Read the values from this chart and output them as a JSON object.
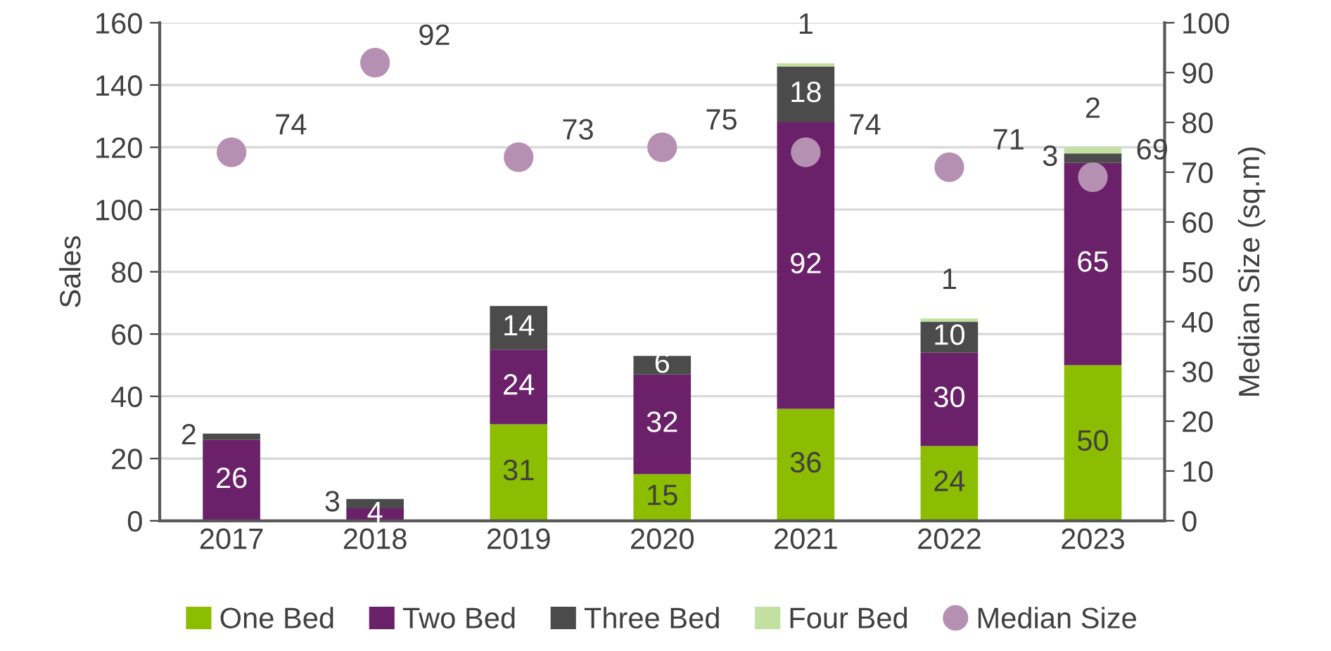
{
  "chart_data": {
    "type": "bar",
    "stacked": true,
    "categories": [
      "2017",
      "2018",
      "2019",
      "2020",
      "2021",
      "2022",
      "2023"
    ],
    "series": [
      {
        "name": "One Bed",
        "color": "#8cbd00",
        "values": [
          0,
          0,
          31,
          15,
          36,
          24,
          50
        ],
        "value_labels": [
          null,
          null,
          "31",
          "15",
          "36",
          "24",
          "50"
        ]
      },
      {
        "name": "Two Bed",
        "color": "#6b2169",
        "values": [
          26,
          4,
          24,
          32,
          92,
          30,
          65
        ],
        "value_labels": [
          "26",
          "4",
          "24",
          "32",
          "92",
          "30",
          "65"
        ]
      },
      {
        "name": "Three Bed",
        "color": "#4b4b4b",
        "values": [
          2,
          3,
          14,
          6,
          18,
          10,
          3
        ],
        "value_labels": [
          "2",
          "3",
          "14",
          "6",
          "18",
          "10",
          "3"
        ]
      },
      {
        "name": "Four Bed",
        "color": "#c2e0a0",
        "values": [
          0,
          0,
          0,
          0,
          1,
          1,
          2
        ],
        "value_labels": [
          null,
          null,
          null,
          null,
          "1",
          "1",
          "2"
        ]
      },
      {
        "name": "Median Size",
        "type": "scatter",
        "axis": "y2",
        "color": "#b690b3",
        "values": [
          74,
          92,
          73,
          75,
          74,
          71,
          69
        ],
        "value_labels": [
          "74",
          "92",
          "73",
          "75",
          "74",
          "71",
          "69"
        ]
      }
    ],
    "ylabel": "Sales",
    "y2label": "Median Size (sq.m)",
    "ylim": [
      0,
      160
    ],
    "yticks": [
      0,
      20,
      40,
      60,
      80,
      100,
      120,
      140,
      160
    ],
    "y2lim": [
      0,
      100
    ],
    "y2ticks": [
      0,
      10,
      20,
      30,
      40,
      50,
      60,
      70,
      80,
      90,
      100
    ],
    "grid": "y",
    "legend": "bottom",
    "marker": "circle"
  }
}
